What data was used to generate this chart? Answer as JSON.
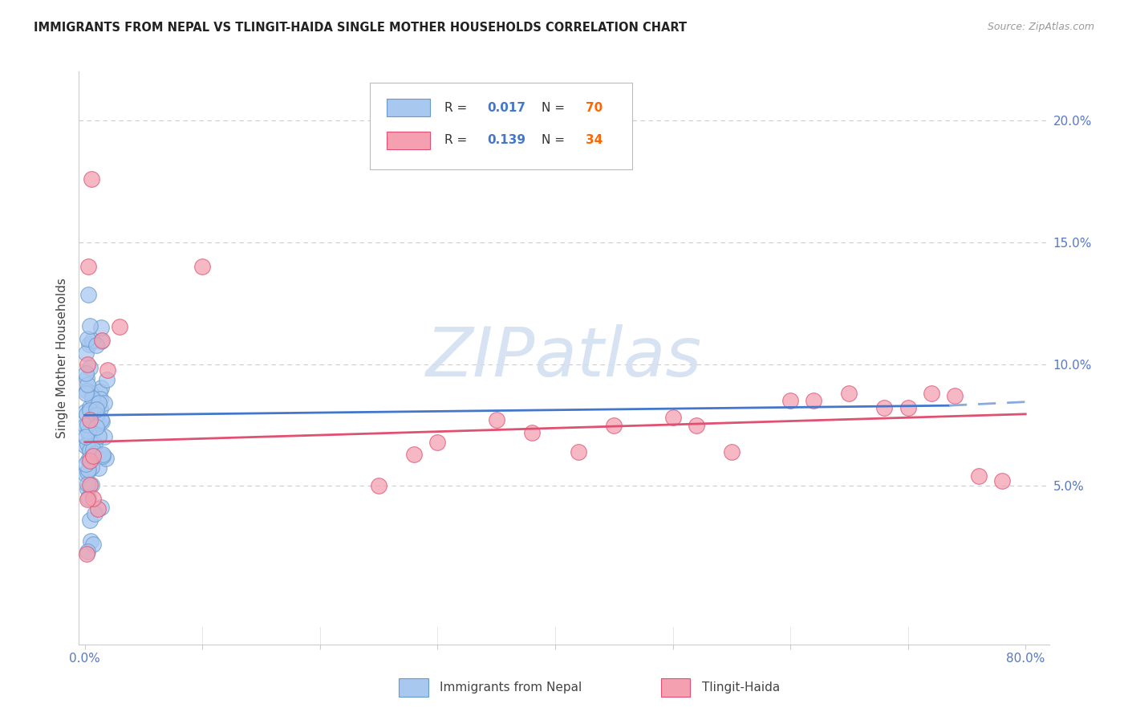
{
  "title": "IMMIGRANTS FROM NEPAL VS TLINGIT-HAIDA SINGLE MOTHER HOUSEHOLDS CORRELATION CHART",
  "source": "Source: ZipAtlas.com",
  "ylabel": "Single Mother Households",
  "xlim": [
    -0.005,
    0.82
  ],
  "ylim": [
    -0.015,
    0.22
  ],
  "yticks_right": [
    0.05,
    0.1,
    0.15,
    0.2
  ],
  "xtick_labels_show": [
    "0.0%",
    "80.0%"
  ],
  "nepal_color": "#a8c8f0",
  "nepal_edge": "#6699cc",
  "tlingit_color": "#f4a0b0",
  "tlingit_edge": "#e05070",
  "trend_nepal_solid_color": "#4477cc",
  "trend_nepal_dashed_color": "#88aadd",
  "trend_tlingit_color": "#e05070",
  "watermark": "ZIPatlas",
  "watermark_color": "#d0dff0",
  "bg_color": "#ffffff",
  "grid_color": "#cccccc",
  "axis_label_color": "#5577cc",
  "title_color": "#222222",
  "source_color": "#999999",
  "legend_R_color": "#4477cc",
  "legend_N_color": "#ff6600",
  "nepal_R": "0.017",
  "nepal_N": "70",
  "tlingit_R": "0.139",
  "tlingit_N": "34"
}
